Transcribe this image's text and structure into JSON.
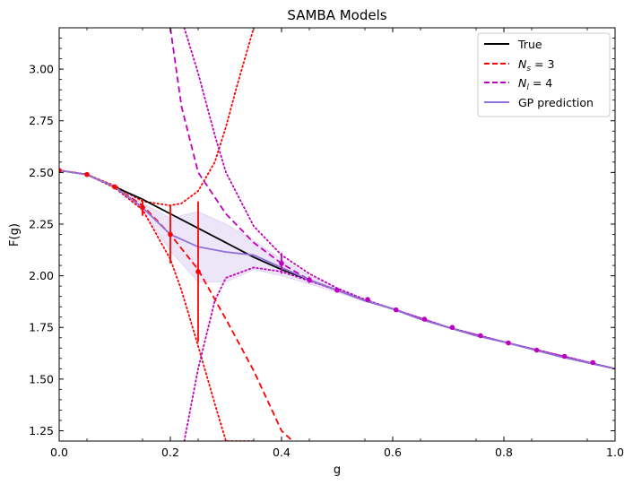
{
  "chart_data": {
    "type": "line",
    "title": "SAMBA Models",
    "xlabel": "g",
    "ylabel": "F(g)",
    "xlim": [
      0.0,
      1.0
    ],
    "ylim": [
      1.2,
      3.2
    ],
    "xticks": [
      "0.0",
      "0.2",
      "0.4",
      "0.6",
      "0.8",
      "1.0"
    ],
    "yticks": [
      "1.25",
      "1.50",
      "1.75",
      "2.00",
      "2.25",
      "2.50",
      "2.75",
      "3.00"
    ],
    "legend_position": "top-right",
    "legend": [
      "True",
      "N_s = 3",
      "N_l = 4",
      "GP prediction"
    ],
    "colors": {
      "true": "#000000",
      "ns3": "#ff0000",
      "nl4": "#bf00bf",
      "gp": "#9370db",
      "gp_band": "#e6dcf5"
    },
    "series": [
      {
        "name": "True",
        "style": "solid",
        "x": [
          0.0,
          0.05,
          0.1,
          0.15,
          0.2,
          0.25,
          0.3,
          0.35,
          0.4,
          0.45,
          0.5,
          0.55,
          0.6,
          0.65,
          0.7,
          0.75,
          0.8,
          0.85,
          0.9,
          0.95,
          1.0
        ],
        "y": [
          2.51,
          2.49,
          2.43,
          2.37,
          2.3,
          2.23,
          2.16,
          2.09,
          2.03,
          1.98,
          1.93,
          1.88,
          1.84,
          1.79,
          1.75,
          1.71,
          1.68,
          1.645,
          1.61,
          1.58,
          1.55
        ]
      },
      {
        "name": "N_s = 3",
        "style": "dashed",
        "x": [
          0.0,
          0.05,
          0.1,
          0.15,
          0.2,
          0.25,
          0.3,
          0.35,
          0.4,
          0.42
        ],
        "y": [
          2.51,
          2.49,
          2.43,
          2.34,
          2.2,
          2.03,
          1.79,
          1.54,
          1.25,
          1.2
        ]
      },
      {
        "name": "N_l = 4",
        "style": "dashed",
        "x": [
          0.2,
          0.22,
          0.25,
          0.28,
          0.3,
          0.35,
          0.4,
          0.45,
          0.5,
          0.55,
          0.6,
          0.65,
          0.7,
          0.75,
          0.8,
          0.85,
          0.9,
          0.95,
          1.0
        ],
        "y": [
          3.2,
          2.82,
          2.5,
          2.38,
          2.3,
          2.16,
          2.06,
          1.98,
          1.93,
          1.88,
          1.84,
          1.79,
          1.75,
          1.71,
          1.68,
          1.645,
          1.61,
          1.58,
          1.55
        ]
      },
      {
        "name": "GP prediction",
        "style": "solid",
        "x": [
          0.0,
          0.05,
          0.1,
          0.15,
          0.2,
          0.25,
          0.3,
          0.35,
          0.4,
          0.45,
          0.5,
          0.55,
          0.6,
          0.65,
          0.7,
          0.75,
          0.8,
          0.85,
          0.9,
          0.95,
          1.0
        ],
        "y": [
          2.51,
          2.49,
          2.43,
          2.33,
          2.2,
          2.14,
          2.115,
          2.1,
          2.04,
          1.98,
          1.93,
          1.88,
          1.84,
          1.79,
          1.75,
          1.71,
          1.68,
          1.645,
          1.61,
          1.58,
          1.55
        ],
        "band_upper": [
          2.51,
          2.49,
          2.43,
          2.35,
          2.28,
          2.31,
          2.25,
          2.17,
          2.08,
          2.0,
          1.94,
          1.885,
          1.84,
          1.79,
          1.75,
          1.71,
          1.68,
          1.645,
          1.61,
          1.58,
          1.55
        ],
        "band_lower": [
          2.51,
          2.49,
          2.43,
          2.31,
          2.12,
          1.97,
          1.97,
          2.03,
          2.0,
          1.96,
          1.92,
          1.875,
          1.84,
          1.79,
          1.75,
          1.71,
          1.68,
          1.645,
          1.61,
          1.58,
          1.55
        ]
      }
    ],
    "uncertainty_bands": [
      {
        "model": "N_s = 3",
        "x": [
          0.0,
          0.05,
          0.1,
          0.15,
          0.2,
          0.22,
          0.25,
          0.28,
          0.3,
          0.32,
          0.35
        ],
        "upper": [
          2.51,
          2.49,
          2.435,
          2.36,
          2.34,
          2.35,
          2.41,
          2.55,
          2.72,
          2.92,
          3.2
        ],
        "lower": [
          2.51,
          2.49,
          2.425,
          2.32,
          2.08,
          1.93,
          1.66,
          1.38,
          1.2,
          1.2,
          1.2
        ]
      },
      {
        "model": "N_l = 4",
        "x": [
          0.225,
          0.25,
          0.28,
          0.3,
          0.35,
          0.4,
          0.45,
          0.5,
          0.55,
          0.6,
          0.7,
          0.8,
          1.0
        ],
        "upper": [
          3.2,
          2.98,
          2.68,
          2.5,
          2.24,
          2.1,
          2.01,
          1.94,
          1.885,
          1.84,
          1.75,
          1.68,
          1.55
        ],
        "lower": [
          1.2,
          1.55,
          1.88,
          1.99,
          2.04,
          2.02,
          1.975,
          1.93,
          1.88,
          1.84,
          1.75,
          1.68,
          1.55
        ]
      }
    ],
    "points_ns": [
      {
        "x": 0.0,
        "y": 2.51,
        "err": 0
      },
      {
        "x": 0.05,
        "y": 2.49,
        "err": 0
      },
      {
        "x": 0.1,
        "y": 2.43,
        "err": 0.01
      },
      {
        "x": 0.15,
        "y": 2.33,
        "err": 0.04
      },
      {
        "x": 0.2,
        "y": 2.2,
        "err": 0.14
      },
      {
        "x": 0.25,
        "y": 2.02,
        "err": 0.34
      }
    ],
    "points_nl": [
      {
        "x": 0.4,
        "y": 2.06,
        "err": 0.05
      },
      {
        "x": 0.45,
        "y": 1.98,
        "err": 0.015
      },
      {
        "x": 0.5,
        "y": 1.93,
        "err": 0.005
      },
      {
        "x": 0.555,
        "y": 1.885,
        "err": 0
      },
      {
        "x": 0.606,
        "y": 1.835,
        "err": 0
      },
      {
        "x": 0.657,
        "y": 1.79,
        "err": 0
      },
      {
        "x": 0.707,
        "y": 1.75,
        "err": 0
      },
      {
        "x": 0.758,
        "y": 1.71,
        "err": 0
      },
      {
        "x": 0.808,
        "y": 1.675,
        "err": 0
      },
      {
        "x": 0.859,
        "y": 1.64,
        "err": 0
      },
      {
        "x": 0.909,
        "y": 1.61,
        "err": 0
      },
      {
        "x": 0.96,
        "y": 1.58,
        "err": 0
      }
    ]
  }
}
